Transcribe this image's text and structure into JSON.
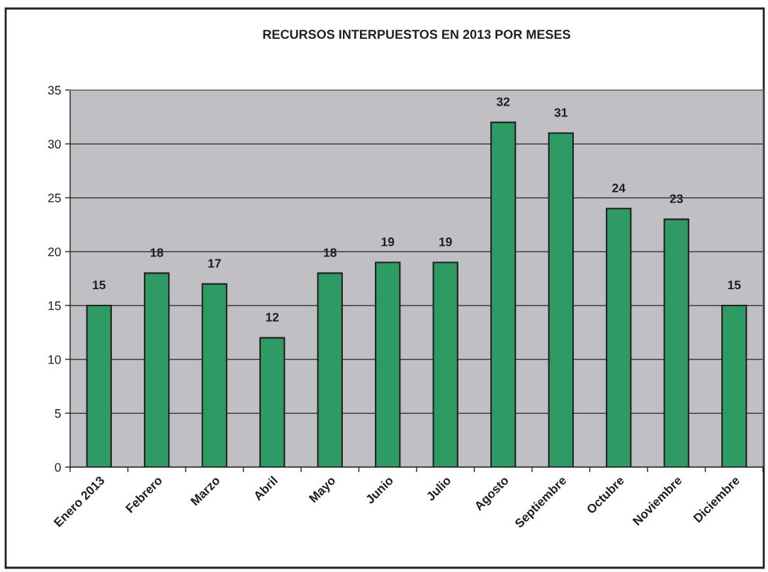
{
  "chart_data": {
    "type": "bar",
    "title": "RECURSOS INTERPUESTOS EN 2013 POR MESES",
    "categories": [
      "Enero 2013",
      "Febrero",
      "Marzo",
      "Abril",
      "Mayo",
      "Junio",
      "Julio",
      "Agosto",
      "Septiembre",
      "Octubre",
      "Noviembre",
      "Diciembre"
    ],
    "values": [
      15,
      18,
      17,
      12,
      18,
      19,
      19,
      32,
      31,
      24,
      23,
      15
    ],
    "color": "#2e9b64",
    "ylim": [
      0,
      35
    ],
    "yticks": [
      0,
      5,
      10,
      15,
      20,
      25,
      30,
      35
    ],
    "grid": "y",
    "data_labels": true
  }
}
